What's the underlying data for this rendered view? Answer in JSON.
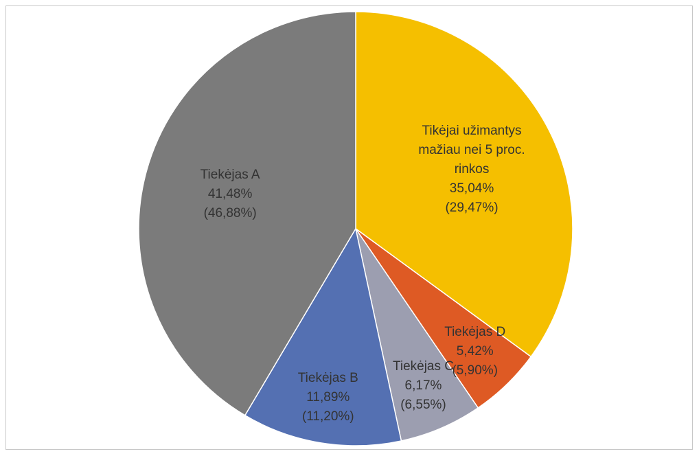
{
  "chart_data": {
    "type": "pie",
    "categories": [
      "Tikėjai užimantys mažiau nei 5 proc. rinkos",
      "Tiekėjas D",
      "Tiekėjas C",
      "Tiekėjas B",
      "Tiekėjas A"
    ],
    "values": [
      35.04,
      5.42,
      6.17,
      11.89,
      41.48
    ],
    "value_labels": [
      "35,04%",
      "5,42%",
      "6,17%",
      "11,89%",
      "41,48%"
    ],
    "secondary_values": [
      29.47,
      5.9,
      6.55,
      11.2,
      46.88
    ],
    "secondary_value_labels": [
      "(29,47%)",
      "(5,90%)",
      "(6,55%)",
      "(11,20%)",
      "(46,88%)"
    ],
    "colors": [
      "#f5bf00",
      "#de5a24",
      "#9c9eb0",
      "#5470b2",
      "#7b7b7b"
    ]
  }
}
